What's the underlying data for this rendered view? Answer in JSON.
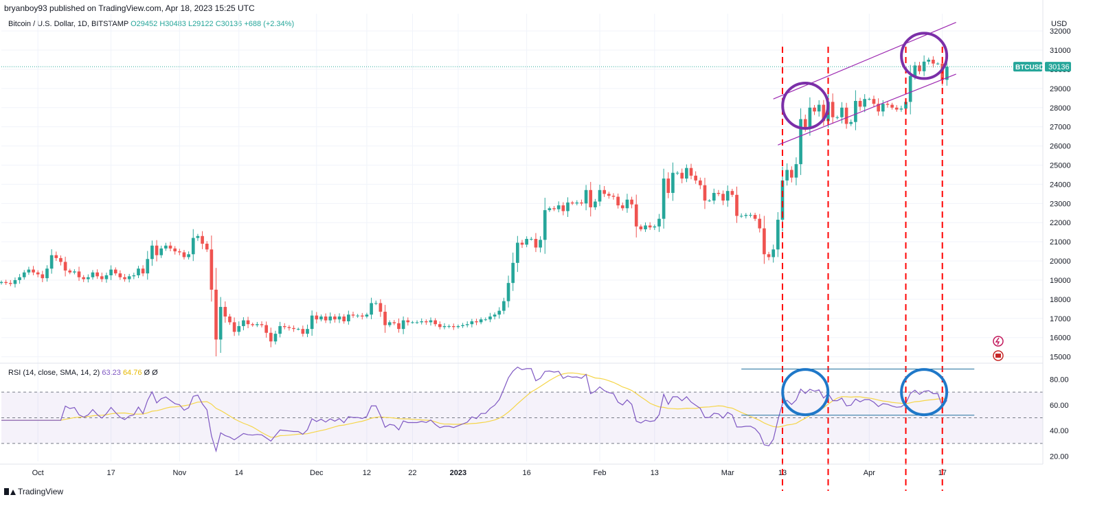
{
  "publisher": "bryanboy93 published on TradingView.com, Apr 18, 2023 15:25 UTC",
  "footer_brand": "TradingView",
  "legend": {
    "symbol": "Bitcoin / U.S. Dollar, 1D, BITSTAMP",
    "o_label": "O",
    "o": "29452",
    "h_label": "H",
    "h": "30483",
    "l_label": "L",
    "l": "29122",
    "c_label": "C",
    "c": "30136",
    "change": "+688 (+2.34%)"
  },
  "rsi_legend": {
    "name": "RSI (14, close, SMA, 14, 2)",
    "rsi": "63.23",
    "sma": "64.76",
    "z1": "Ø",
    "z2": "Ø"
  },
  "price_badge": {
    "symbol": "BTCUSD",
    "value": "30136"
  },
  "colors": {
    "up": "#26a69a",
    "down": "#ef5350",
    "rsi": "#7e57c2",
    "rsi_sma": "#f5d547",
    "annotation_purple": "#7b2fa8",
    "annotation_blue": "#1f78c8",
    "dashed_red": "#ff0000",
    "channel": "#9c27b0",
    "hline": "#1f6f9e"
  },
  "chart_data": [
    {
      "type": "candlestick",
      "title": "Bitcoin / U.S. Dollar, 1D, BITSTAMP",
      "ylabel": "USD",
      "ylim": [
        14700,
        32900
      ],
      "yticks": [
        15000,
        16000,
        17000,
        18000,
        19000,
        20000,
        21000,
        22000,
        23000,
        24000,
        25000,
        26000,
        27000,
        28000,
        29000,
        30000,
        31000,
        32000
      ],
      "xticks": [
        "Oct",
        "17",
        "Nov",
        "14",
        "Dec",
        "12",
        "22",
        "2023",
        "16",
        "Feb",
        "13",
        "Mar",
        "13",
        "Apr",
        "17"
      ],
      "xtick_dates": [
        "2022-10-01",
        "2022-10-17",
        "2022-11-01",
        "2022-11-14",
        "2022-12-01",
        "2022-12-12",
        "2022-12-22",
        "2023-01-01",
        "2023-01-16",
        "2023-02-01",
        "2023-02-13",
        "2023-03-01",
        "2023-03-13",
        "2023-04-01",
        "2023-04-17"
      ],
      "x_range": [
        "2022-09-23",
        "2023-05-09"
      ],
      "last_price": 30136,
      "closes": [
        {
          "date": "2022-09-23",
          "close": 18900
        },
        {
          "date": "2022-09-24",
          "close": 18850
        },
        {
          "date": "2022-09-25",
          "close": 18800
        },
        {
          "date": "2022-09-26",
          "close": 19000
        },
        {
          "date": "2022-09-27",
          "close": 19150
        },
        {
          "date": "2022-09-28",
          "close": 19400
        },
        {
          "date": "2022-09-29",
          "close": 19550
        },
        {
          "date": "2022-09-30",
          "close": 19400
        },
        {
          "date": "2022-10-01",
          "close": 19300
        },
        {
          "date": "2022-10-02",
          "close": 19100
        },
        {
          "date": "2022-10-03",
          "close": 19600
        },
        {
          "date": "2022-10-04",
          "close": 20300
        },
        {
          "date": "2022-10-05",
          "close": 20150
        },
        {
          "date": "2022-10-06",
          "close": 19950
        },
        {
          "date": "2022-10-07",
          "close": 19500
        },
        {
          "date": "2022-10-08",
          "close": 19400
        },
        {
          "date": "2022-10-09",
          "close": 19450
        },
        {
          "date": "2022-10-10",
          "close": 19150
        },
        {
          "date": "2022-10-11",
          "close": 19050
        },
        {
          "date": "2022-10-12",
          "close": 19150
        },
        {
          "date": "2022-10-13",
          "close": 19400
        },
        {
          "date": "2022-10-14",
          "close": 19200
        },
        {
          "date": "2022-10-15",
          "close": 19050
        },
        {
          "date": "2022-10-16",
          "close": 19250
        },
        {
          "date": "2022-10-17",
          "close": 19550
        },
        {
          "date": "2022-10-18",
          "close": 19350
        },
        {
          "date": "2022-10-19",
          "close": 19150
        },
        {
          "date": "2022-10-20",
          "close": 19050
        },
        {
          "date": "2022-10-21",
          "close": 19200
        },
        {
          "date": "2022-10-22",
          "close": 19250
        },
        {
          "date": "2022-10-23",
          "close": 19600
        },
        {
          "date": "2022-10-24",
          "close": 19350
        },
        {
          "date": "2022-10-25",
          "close": 20100
        },
        {
          "date": "2022-10-26",
          "close": 20800
        },
        {
          "date": "2022-10-27",
          "close": 20300
        },
        {
          "date": "2022-10-28",
          "close": 20650
        },
        {
          "date": "2022-10-29",
          "close": 20800
        },
        {
          "date": "2022-10-30",
          "close": 20650
        },
        {
          "date": "2022-10-31",
          "close": 20500
        },
        {
          "date": "2022-11-01",
          "close": 20450
        },
        {
          "date": "2022-11-02",
          "close": 20200
        },
        {
          "date": "2022-11-03",
          "close": 20350
        },
        {
          "date": "2022-11-04",
          "close": 21200
        },
        {
          "date": "2022-11-05",
          "close": 21300
        },
        {
          "date": "2022-11-06",
          "close": 20900
        },
        {
          "date": "2022-11-07",
          "close": 20600
        },
        {
          "date": "2022-11-08",
          "close": 18500
        },
        {
          "date": "2022-11-09",
          "close": 15900
        },
        {
          "date": "2022-11-10",
          "close": 17600
        },
        {
          "date": "2022-11-11",
          "close": 17100
        },
        {
          "date": "2022-11-12",
          "close": 16800
        },
        {
          "date": "2022-11-13",
          "close": 16300
        },
        {
          "date": "2022-11-14",
          "close": 16600
        },
        {
          "date": "2022-11-15",
          "close": 16900
        },
        {
          "date": "2022-11-16",
          "close": 16700
        },
        {
          "date": "2022-11-17",
          "close": 16650
        },
        {
          "date": "2022-11-18",
          "close": 16700
        },
        {
          "date": "2022-11-19",
          "close": 16650
        },
        {
          "date": "2022-11-20",
          "close": 16250
        },
        {
          "date": "2022-11-21",
          "close": 15800
        },
        {
          "date": "2022-11-22",
          "close": 16200
        },
        {
          "date": "2022-11-23",
          "close": 16600
        },
        {
          "date": "2022-11-24",
          "close": 16550
        },
        {
          "date": "2022-11-25",
          "close": 16500
        },
        {
          "date": "2022-11-26",
          "close": 16450
        },
        {
          "date": "2022-11-27",
          "close": 16450
        },
        {
          "date": "2022-11-28",
          "close": 16200
        },
        {
          "date": "2022-11-29",
          "close": 16450
        },
        {
          "date": "2022-11-30",
          "close": 17150
        },
        {
          "date": "2022-12-01",
          "close": 16950
        },
        {
          "date": "2022-12-02",
          "close": 17100
        },
        {
          "date": "2022-12-03",
          "close": 16900
        },
        {
          "date": "2022-12-04",
          "close": 17100
        },
        {
          "date": "2022-12-05",
          "close": 16950
        },
        {
          "date": "2022-12-06",
          "close": 17100
        },
        {
          "date": "2022-12-07",
          "close": 16850
        },
        {
          "date": "2022-12-08",
          "close": 17200
        },
        {
          "date": "2022-12-09",
          "close": 17150
        },
        {
          "date": "2022-12-10",
          "close": 17150
        },
        {
          "date": "2022-12-11",
          "close": 17100
        },
        {
          "date": "2022-12-12",
          "close": 17200
        },
        {
          "date": "2022-12-13",
          "close": 17800
        },
        {
          "date": "2022-12-14",
          "close": 17800
        },
        {
          "date": "2022-12-15",
          "close": 17350
        },
        {
          "date": "2022-12-16",
          "close": 16650
        },
        {
          "date": "2022-12-17",
          "close": 16800
        },
        {
          "date": "2022-12-18",
          "close": 16750
        },
        {
          "date": "2022-12-19",
          "close": 16450
        },
        {
          "date": "2022-12-20",
          "close": 16900
        },
        {
          "date": "2022-12-21",
          "close": 16800
        },
        {
          "date": "2022-12-22",
          "close": 16800
        },
        {
          "date": "2022-12-23",
          "close": 16800
        },
        {
          "date": "2022-12-24",
          "close": 16850
        },
        {
          "date": "2022-12-25",
          "close": 16800
        },
        {
          "date": "2022-12-26",
          "close": 16900
        },
        {
          "date": "2022-12-27",
          "close": 16700
        },
        {
          "date": "2022-12-28",
          "close": 16550
        },
        {
          "date": "2022-12-29",
          "close": 16600
        },
        {
          "date": "2022-12-30",
          "close": 16600
        },
        {
          "date": "2022-12-31",
          "close": 16550
        },
        {
          "date": "2023-01-01",
          "close": 16600
        },
        {
          "date": "2023-01-02",
          "close": 16650
        },
        {
          "date": "2023-01-03",
          "close": 16700
        },
        {
          "date": "2023-01-04",
          "close": 16850
        },
        {
          "date": "2023-01-05",
          "close": 16800
        },
        {
          "date": "2023-01-06",
          "close": 16950
        },
        {
          "date": "2023-01-07",
          "close": 16950
        },
        {
          "date": "2023-01-08",
          "close": 17100
        },
        {
          "date": "2023-01-09",
          "close": 17200
        },
        {
          "date": "2023-01-10",
          "close": 17400
        },
        {
          "date": "2023-01-11",
          "close": 17900
        },
        {
          "date": "2023-01-12",
          "close": 18850
        },
        {
          "date": "2023-01-13",
          "close": 19900
        },
        {
          "date": "2023-01-14",
          "close": 20950
        },
        {
          "date": "2023-01-15",
          "close": 20850
        },
        {
          "date": "2023-01-16",
          "close": 21150
        },
        {
          "date": "2023-01-17",
          "close": 21150
        },
        {
          "date": "2023-01-18",
          "close": 20700
        },
        {
          "date": "2023-01-19",
          "close": 21100
        },
        {
          "date": "2023-01-20",
          "close": 22650
        },
        {
          "date": "2023-01-21",
          "close": 22750
        },
        {
          "date": "2023-01-22",
          "close": 22700
        },
        {
          "date": "2023-01-23",
          "close": 22900
        },
        {
          "date": "2023-01-24",
          "close": 22600
        },
        {
          "date": "2023-01-25",
          "close": 23050
        },
        {
          "date": "2023-01-26",
          "close": 23000
        },
        {
          "date": "2023-01-27",
          "close": 23050
        },
        {
          "date": "2023-01-28",
          "close": 23000
        },
        {
          "date": "2023-01-29",
          "close": 23700
        },
        {
          "date": "2023-01-30",
          "close": 22800
        },
        {
          "date": "2023-01-31",
          "close": 23100
        },
        {
          "date": "2023-02-01",
          "close": 23700
        },
        {
          "date": "2023-02-02",
          "close": 23500
        },
        {
          "date": "2023-02-03",
          "close": 23400
        },
        {
          "date": "2023-02-04",
          "close": 23350
        },
        {
          "date": "2023-02-05",
          "close": 22900
        },
        {
          "date": "2023-02-06",
          "close": 22750
        },
        {
          "date": "2023-02-07",
          "close": 23200
        },
        {
          "date": "2023-02-08",
          "close": 22950
        },
        {
          "date": "2023-02-09",
          "close": 21800
        },
        {
          "date": "2023-02-10",
          "close": 21650
        },
        {
          "date": "2023-02-11",
          "close": 21850
        },
        {
          "date": "2023-02-12",
          "close": 21750
        },
        {
          "date": "2023-02-13",
          "close": 21800
        },
        {
          "date": "2023-02-14",
          "close": 22200
        },
        {
          "date": "2023-02-15",
          "close": 24300
        },
        {
          "date": "2023-02-16",
          "close": 23550
        },
        {
          "date": "2023-02-17",
          "close": 24600
        },
        {
          "date": "2023-02-18",
          "close": 24600
        },
        {
          "date": "2023-02-19",
          "close": 24300
        },
        {
          "date": "2023-02-20",
          "close": 24850
        },
        {
          "date": "2023-02-21",
          "close": 24450
        },
        {
          "date": "2023-02-22",
          "close": 24200
        },
        {
          "date": "2023-02-23",
          "close": 23950
        },
        {
          "date": "2023-02-24",
          "close": 23150
        },
        {
          "date": "2023-02-25",
          "close": 23150
        },
        {
          "date": "2023-02-26",
          "close": 23550
        },
        {
          "date": "2023-02-27",
          "close": 23500
        },
        {
          "date": "2023-02-28",
          "close": 23150
        },
        {
          "date": "2023-03-01",
          "close": 23650
        },
        {
          "date": "2023-03-02",
          "close": 23450
        },
        {
          "date": "2023-03-03",
          "close": 22350
        },
        {
          "date": "2023-03-04",
          "close": 22350
        },
        {
          "date": "2023-03-05",
          "close": 22400
        },
        {
          "date": "2023-03-06",
          "close": 22400
        },
        {
          "date": "2023-03-07",
          "close": 22200
        },
        {
          "date": "2023-03-08",
          "close": 21700
        },
        {
          "date": "2023-03-09",
          "close": 20350
        },
        {
          "date": "2023-03-10",
          "close": 20200
        },
        {
          "date": "2023-03-11",
          "close": 20600
        },
        {
          "date": "2023-03-12",
          "close": 22150
        },
        {
          "date": "2023-03-13",
          "close": 24200
        },
        {
          "date": "2023-03-14",
          "close": 24750
        },
        {
          "date": "2023-03-15",
          "close": 24350
        },
        {
          "date": "2023-03-16",
          "close": 25050
        },
        {
          "date": "2023-03-17",
          "close": 27400
        },
        {
          "date": "2023-03-18",
          "close": 26950
        },
        {
          "date": "2023-03-19",
          "close": 28000
        },
        {
          "date": "2023-03-20",
          "close": 27800
        },
        {
          "date": "2023-03-21",
          "close": 28150
        },
        {
          "date": "2023-03-22",
          "close": 27300
        },
        {
          "date": "2023-03-23",
          "close": 28300
        },
        {
          "date": "2023-03-24",
          "close": 27500
        },
        {
          "date": "2023-03-25",
          "close": 27500
        },
        {
          "date": "2023-03-26",
          "close": 28000
        },
        {
          "date": "2023-03-27",
          "close": 27150
        },
        {
          "date": "2023-03-28",
          "close": 27250
        },
        {
          "date": "2023-03-29",
          "close": 28350
        },
        {
          "date": "2023-03-30",
          "close": 28050
        },
        {
          "date": "2023-03-31",
          "close": 28450
        },
        {
          "date": "2023-04-01",
          "close": 28450
        },
        {
          "date": "2023-04-02",
          "close": 28200
        },
        {
          "date": "2023-04-03",
          "close": 27800
        },
        {
          "date": "2023-04-04",
          "close": 28200
        },
        {
          "date": "2023-04-05",
          "close": 28150
        },
        {
          "date": "2023-04-06",
          "close": 28000
        },
        {
          "date": "2023-04-07",
          "close": 27900
        },
        {
          "date": "2023-04-08",
          "close": 27950
        },
        {
          "date": "2023-04-09",
          "close": 28300
        },
        {
          "date": "2023-04-10",
          "close": 29650
        },
        {
          "date": "2023-04-11",
          "close": 30200
        },
        {
          "date": "2023-04-12",
          "close": 29900
        },
        {
          "date": "2023-04-13",
          "close": 30400
        },
        {
          "date": "2023-04-14",
          "close": 30500
        },
        {
          "date": "2023-04-15",
          "close": 30300
        },
        {
          "date": "2023-04-16",
          "close": 30300
        },
        {
          "date": "2023-04-17",
          "close": 29450
        },
        {
          "date": "2023-04-18",
          "close": 30136
        }
      ]
    },
    {
      "type": "line",
      "title": "RSI (14, close, SMA, 14, 2)",
      "ylim": [
        16,
        92
      ],
      "yticks": [
        20,
        40,
        60,
        80
      ],
      "ytick_labels": [
        "20.00",
        "40.00",
        "60.00",
        "80.00"
      ],
      "bands": [
        30,
        50,
        70
      ],
      "series": [
        {
          "name": "RSI",
          "values": "computed from closes (14)"
        },
        {
          "name": "RSI-based MA",
          "values": "SMA(14) of RSI"
        }
      ],
      "last_values": {
        "rsi": 63.23,
        "sma": 64.76
      }
    }
  ],
  "annotations": {
    "vlines": [
      "2023-03-13",
      "2023-03-23",
      "2023-04-09",
      "2023-04-17"
    ],
    "price_circles": [
      {
        "date": "2023-03-18",
        "price": 28100
      },
      {
        "date": "2023-04-13",
        "price": 30700
      }
    ],
    "rsi_circles": [
      {
        "date": "2023-03-18",
        "rsi": 70
      },
      {
        "date": "2023-04-13",
        "rsi": 70
      }
    ],
    "channel_upper": [
      {
        "date": "2023-03-11",
        "price": 28450
      },
      {
        "date": "2023-04-20",
        "price": 32450
      }
    ],
    "channel_lower": [
      {
        "date": "2023-03-12",
        "price": 26050
      },
      {
        "date": "2023-04-20",
        "price": 29750
      }
    ],
    "rsi_hlines": [
      {
        "value": 88,
        "from": "2023-03-04",
        "to": "2023-04-24"
      },
      {
        "value": 52,
        "from": "2023-03-04",
        "to": "2023-04-24"
      }
    ]
  }
}
